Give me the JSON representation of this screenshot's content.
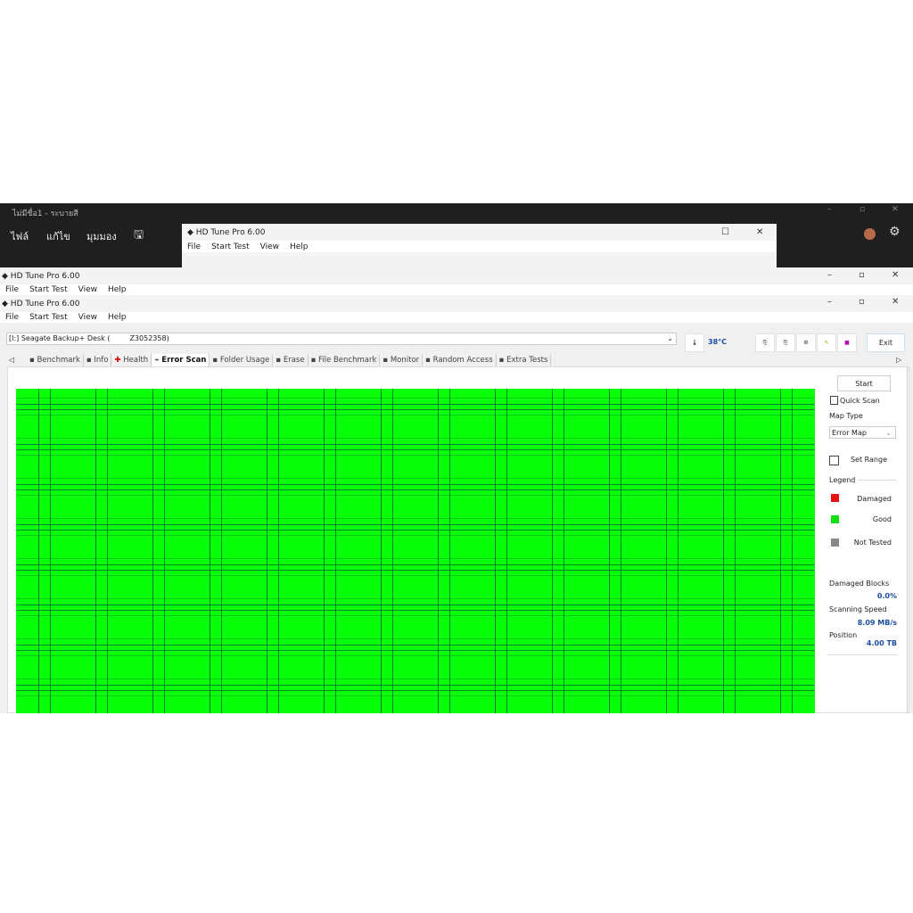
{
  "background_app": {
    "title": "ไม่มีชื่อ1 - ระบายสี",
    "menu": [
      "ไฟล์",
      "แก้ไข",
      "มุมมอง"
    ]
  },
  "windows": [
    {
      "title": "HD Tune Pro 6.00",
      "menu": [
        "File",
        "Start Test",
        "View",
        "Help"
      ]
    },
    {
      "title": "HD Tune Pro 6.00",
      "menu": [
        "File",
        "Start Test",
        "View",
        "Help"
      ]
    },
    {
      "title": "HD Tune Pro 6.00",
      "menu": [
        "File",
        "Start Test",
        "View",
        "Help"
      ]
    }
  ],
  "drive": {
    "selected": "[I:] Seagate Backup+  Desk (",
    "serial": "Z3052358)"
  },
  "temperature": "38°C",
  "exit_label": "Exit",
  "tabs": [
    "Benchmark",
    "Info",
    "Health",
    "Error Scan",
    "Folder Usage",
    "Erase",
    "File Benchmark",
    "Monitor",
    "Random Access",
    "Extra Tests"
  ],
  "active_tab": "Error Scan",
  "panel": {
    "start": "Start",
    "quick_scan": "Quick Scan",
    "map_type_label": "Map Type",
    "map_type": "Error Map",
    "set_range": "Set Range",
    "legend_label": "Legend",
    "legend": [
      {
        "label": "Damaged",
        "color": "#e81010"
      },
      {
        "label": "Good",
        "color": "#10e010"
      },
      {
        "label": "Not Tested",
        "color": "#888888"
      }
    ],
    "damaged_blocks_label": "Damaged Blocks",
    "damaged_blocks": "0.0%",
    "speed_label": "Scanning Speed",
    "speed": "8.09 MB/s",
    "position_label": "Position",
    "position": "4.00 TB"
  },
  "map_color": "#08ff08"
}
